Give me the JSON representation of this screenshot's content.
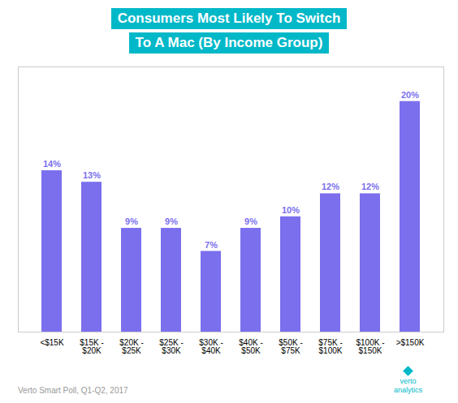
{
  "chart_data": {
    "type": "bar",
    "title": "Consumers Most Likely To Switch",
    "subtitle": "To A Mac (By Income Group)",
    "categories": [
      "<$15K",
      "$15K -\n$20K",
      "$20K -\n$25K",
      "$25K -\n$30K",
      "$30K -\n$40K",
      "$40K -\n$50K",
      "$50K -\n$75K",
      "$75K -\n$100K",
      "$100K -\n$150K",
      ">$150K"
    ],
    "values": [
      14,
      13,
      9,
      9,
      7,
      9,
      10,
      12,
      12,
      20
    ],
    "value_labels": [
      "14%",
      "13%",
      "9%",
      "9%",
      "7%",
      "9%",
      "10%",
      "12%",
      "12%",
      "20%"
    ],
    "data_labels": true,
    "color": "#7b6fee",
    "ylim": [
      0,
      23
    ],
    "grid": false,
    "tick_labels": "x",
    "annotations": [
      "Verto Smart Poll, Q1-Q2, 2017",
      "verto\nanalytics"
    ]
  }
}
